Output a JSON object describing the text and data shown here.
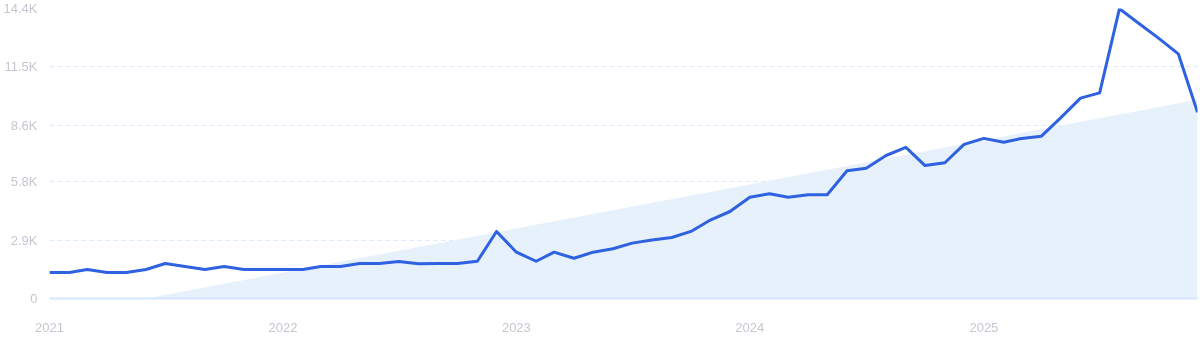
{
  "chart_data": {
    "type": "line",
    "x": [
      "2021-01",
      "2021-02",
      "2021-03",
      "2021-04",
      "2021-05",
      "2021-06",
      "2021-07",
      "2021-08",
      "2021-09",
      "2021-10",
      "2021-11",
      "2021-12",
      "2022-01",
      "2022-02",
      "2022-03",
      "2022-04",
      "2022-05",
      "2022-06",
      "2022-07",
      "2022-08",
      "2022-09",
      "2022-10",
      "2022-11",
      "2022-12",
      "2023-01",
      "2023-02",
      "2023-03",
      "2023-04",
      "2023-05",
      "2023-06",
      "2023-07",
      "2023-08",
      "2023-09",
      "2023-10",
      "2023-11",
      "2023-12",
      "2024-01",
      "2024-02",
      "2024-03",
      "2024-04",
      "2024-05",
      "2024-06",
      "2024-07",
      "2024-08",
      "2024-09",
      "2024-10",
      "2024-11",
      "2024-12",
      "2025-01",
      "2025-02",
      "2025-03",
      "2025-04",
      "2025-05",
      "2025-06",
      "2025-07",
      "2025-08",
      "2025-09",
      "2025-10",
      "2025-11",
      "2025-12"
    ],
    "series": [
      {
        "type": "area",
        "color": "#e4effc",
        "x": [
          "2021-06",
          "2025-12"
        ],
        "values": [
          0,
          9870
        ]
      },
      {
        "color": "#2f62e0",
        "values": [
          1290,
          1290,
          1440,
          1290,
          1290,
          1440,
          1740,
          1590,
          1440,
          1590,
          1440,
          1440,
          1440,
          1440,
          1590,
          1590,
          1740,
          1740,
          1840,
          1720,
          1740,
          1740,
          1850,
          3330,
          2300,
          1850,
          2300,
          2000,
          2300,
          2470,
          2750,
          2910,
          3030,
          3330,
          3910,
          4320,
          5030,
          5200,
          5030,
          5150,
          5150,
          6340,
          6470,
          7100,
          7500,
          6600,
          6740,
          7650,
          7950,
          7760,
          7950,
          8060,
          8970,
          9950,
          10210,
          14390,
          13640,
          12930,
          12150,
          9250
        ]
      }
    ],
    "xlim": [
      "2021-01",
      "2025-12"
    ],
    "xticks": [
      "2021",
      "2022",
      "2023",
      "2024",
      "2025"
    ],
    "ylim": [
      0,
      14400
    ],
    "yticks": [
      0,
      {
        "value": 2900,
        "label": "2.9K"
      },
      {
        "value": 5800,
        "label": "5.8K"
      },
      {
        "value": 8600,
        "label": "8.6K"
      },
      {
        "value": 11500,
        "label": "11.5K"
      },
      {
        "value": 14400,
        "label": "14.4K"
      }
    ],
    "grid": "y",
    "marker": "none",
    "line_style": "solid"
  }
}
